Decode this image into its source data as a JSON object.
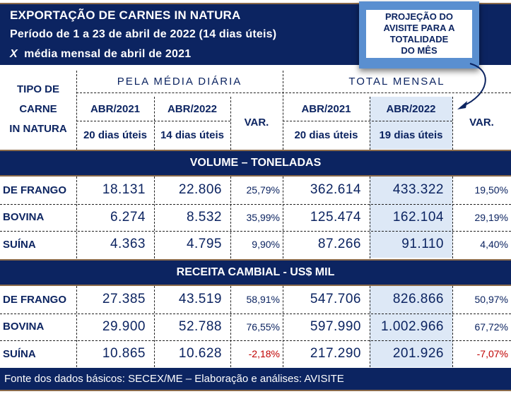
{
  "title": {
    "line1": "EXPORTAÇÃO DE CARNES IN NATURA",
    "line2": "Período de 1 a 23 de abril de 2022 (14 dias úteis)",
    "line3_x": "X",
    "line3": "média mensal de abril de 2021"
  },
  "projection_note": [
    "PROJEÇÃO DO",
    "AVISITE PARA A",
    "TOTALIDADE",
    "DO MÊS"
  ],
  "header": {
    "tipo": [
      "TIPO DE",
      "CARNE",
      "IN NATURA"
    ],
    "media_diaria": "PELA MÉDIA DIÁRIA",
    "total_mensal": "TOTAL MENSAL",
    "cols": [
      {
        "m": "ABR/2021",
        "d": "20 dias úteis"
      },
      {
        "m": "ABR/2022",
        "d": "14 dias úteis"
      },
      {
        "m": "VAR."
      },
      {
        "m": "ABR/2021",
        "d": "20 dias úteis"
      },
      {
        "m": "ABR/2022",
        "d": "19 dias úteis"
      },
      {
        "m": "VAR."
      }
    ]
  },
  "volume": {
    "title": "VOLUME – TONELADAS",
    "rows": [
      {
        "label": "DE FRANGO",
        "v": [
          "18.131",
          "22.806",
          "25,79%",
          "362.614",
          "433.322",
          "19,50%"
        ]
      },
      {
        "label": "BOVINA",
        "v": [
          "6.274",
          "8.532",
          "35,99%",
          "125.474",
          "162.104",
          "29,19%"
        ]
      },
      {
        "label": "SUÍNA",
        "v": [
          "4.363",
          "4.795",
          "9,90%",
          "87.266",
          "91.110",
          "4,40%"
        ]
      }
    ]
  },
  "receita": {
    "title": "RECEITA  CAMBIAL  - US$ MIL",
    "rows": [
      {
        "label": "DE FRANGO",
        "v": [
          "27.385",
          "43.519",
          "58,91%",
          "547.706",
          "826.866",
          "50,97%"
        ]
      },
      {
        "label": "BOVINA",
        "v": [
          "29.900",
          "52.788",
          "76,55%",
          "597.990",
          "1.002.966",
          "67,72%"
        ]
      },
      {
        "label": "SUÍNA",
        "v": [
          "10.865",
          "10.628",
          "-2,18%",
          "217.290",
          "201.926",
          "-7,07%"
        ]
      }
    ]
  },
  "footer": "Fonte dos dados básicos: SECEX/ME – Elaboração e análises: AVISITE",
  "colors": {
    "navy": "#0c2461",
    "highlight": "#dde8f6",
    "negative": "#c00000"
  }
}
